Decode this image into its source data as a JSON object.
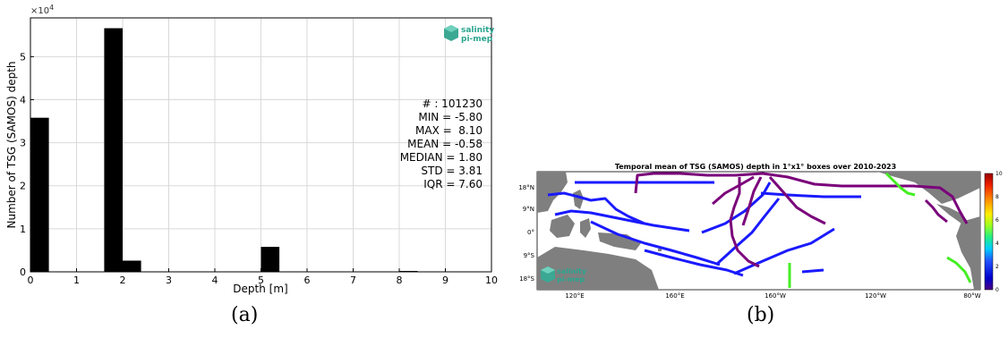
{
  "chart_data": [
    {
      "type": "bar",
      "title": "",
      "xlabel": "Depth [m]",
      "ylabel": "Number of TSG (SAMOS) depth",
      "y_multiplier_label": "×10",
      "y_multiplier_exp": "4",
      "xlim": [
        0,
        10
      ],
      "ylim": [
        0,
        59000
      ],
      "xticks": [
        "0",
        "1",
        "2",
        "3",
        "4",
        "5",
        "6",
        "7",
        "8",
        "9",
        "10"
      ],
      "yticks": [
        "0",
        "1",
        "2",
        "3",
        "4",
        "5"
      ],
      "grid": true,
      "bar_width": 0.4,
      "bars": [
        {
          "x": 0.2,
          "value": 35800
        },
        {
          "x": 1.8,
          "value": 56600
        },
        {
          "x": 2.2,
          "value": 2600
        },
        {
          "x": 5.2,
          "value": 5800
        },
        {
          "x": 8.2,
          "value": 200
        }
      ],
      "stats": [
        "# : 101230",
        "MIN = -5.80",
        "MAX =  8.10",
        "MEAN = -0.58",
        "MEDIAN = 1.80",
        "STD = 3.81",
        "IQR = 7.60"
      ],
      "logo": {
        "line1": "salinity",
        "line2": "pi-mep"
      },
      "caption": "(a)"
    },
    {
      "type": "heatmap",
      "title": "Temporal mean of TSG (SAMOS) depth in 1°x1° boxes over 2010-2023",
      "x_ticks": [
        "120°E",
        "160°E",
        "160°W",
        "120°W",
        "80°W"
      ],
      "y_ticks": [
        "18°N",
        "9°N",
        "0°",
        "9°S",
        "18°S"
      ],
      "colorbar_ticks": [
        "10",
        "8",
        "6",
        "4",
        "2",
        "0"
      ],
      "colorbar_range": [
        0,
        10
      ],
      "colors": {
        "land": "#7f7f7f",
        "low": "#1a1aff",
        "mid_low": "#7a007a",
        "mid": "#44ee22"
      },
      "logo": {
        "line1": "salinity",
        "line2": "pi-mep"
      },
      "caption": "(b)"
    }
  ]
}
